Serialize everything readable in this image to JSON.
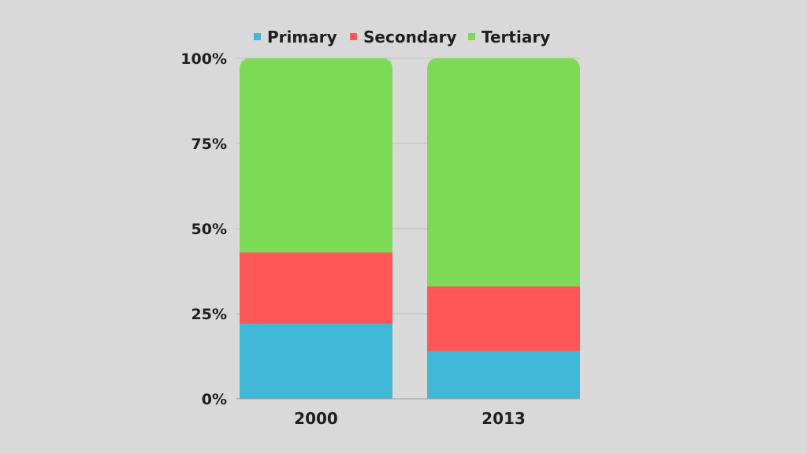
{
  "chart_data": {
    "type": "bar",
    "stacked": true,
    "categories": [
      "2000",
      "2013"
    ],
    "series": [
      {
        "name": "Primary",
        "color": "#41b8d5",
        "values": [
          22,
          14
        ]
      },
      {
        "name": "Secondary",
        "color": "#ff5757",
        "values": [
          21,
          19
        ]
      },
      {
        "name": "Tertiary",
        "color": "#7ed957",
        "values": [
          57,
          67
        ]
      }
    ],
    "ylim": [
      0,
      100
    ],
    "yticks": [
      0,
      25,
      50,
      75,
      100
    ],
    "ytick_labels": [
      "0%",
      "25%",
      "50%",
      "75%",
      "100%"
    ],
    "grid": true,
    "legend_position": "top",
    "title": "",
    "xlabel": "",
    "ylabel": ""
  }
}
